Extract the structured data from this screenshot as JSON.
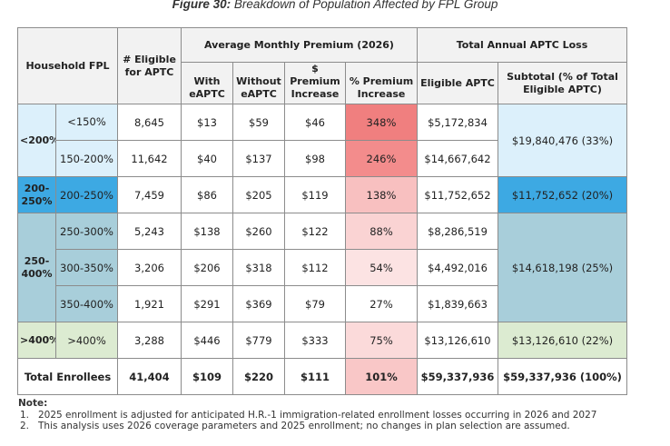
{
  "caption": {
    "figure": "Figure 30:",
    "text": "Breakdown of Population Affected by FPL Group"
  },
  "headers": {
    "household_fpl": "Household FPL",
    "eligible": "# Eligible for APTC",
    "avg_premium_group": "Average Monthly Premium (2026)",
    "with_eaptc": "With eAPTC",
    "without_eaptc": "Without eAPTC",
    "dollar_increase": "$ Premium Increase",
    "pct_increase": "% Premium Increase",
    "aptc_loss_group": "Total Annual APTC Loss",
    "eligible_aptc": "Eligible APTC",
    "subtotal": "Subtotal (% of Total Eligible APTC)"
  },
  "groups": [
    {
      "label": "<200%",
      "color": "#dcf0fb",
      "subtotal": "$19,840,476 (33%)"
    },
    {
      "label": "200-250%",
      "color": "#3da9e3",
      "subtotal": "$11,752,652 (20%)"
    },
    {
      "label": "250-400%",
      "color": "#a8ceda",
      "subtotal": "$14,618,198 (25%)"
    },
    {
      "label": ">400%",
      "color": "#dcebd1",
      "subtotal": "$13,126,610 (22%)"
    }
  ],
  "rows": [
    {
      "fpl": "<150%",
      "eligible": "8,645",
      "with": "$13",
      "without": "$59",
      "inc": "$46",
      "pct": "348%",
      "pct_color": "#f07f7f",
      "aptc": "$5,172,834"
    },
    {
      "fpl": "150-200%",
      "eligible": "11,642",
      "with": "$40",
      "without": "$137",
      "inc": "$98",
      "pct": "246%",
      "pct_color": "#f38c8c",
      "aptc": "$14,667,642"
    },
    {
      "fpl": "200-250%",
      "eligible": "7,459",
      "with": "$86",
      "without": "$205",
      "inc": "$119",
      "pct": "138%",
      "pct_color": "#f8c0c0",
      "aptc": "$11,752,652"
    },
    {
      "fpl": "250-300%",
      "eligible": "5,243",
      "with": "$138",
      "without": "$260",
      "inc": "$122",
      "pct": "88%",
      "pct_color": "#fad3d3",
      "aptc": "$8,286,519"
    },
    {
      "fpl": "300-350%",
      "eligible": "3,206",
      "with": "$206",
      "without": "$318",
      "inc": "$112",
      "pct": "54%",
      "pct_color": "#fce3e3",
      "aptc": "$4,492,016"
    },
    {
      "fpl": "350-400%",
      "eligible": "1,921",
      "with": "$291",
      "without": "$369",
      "inc": "$79",
      "pct": "27%",
      "pct_color": "#ffffff",
      "aptc": "$1,839,663"
    },
    {
      "fpl": ">400%",
      "eligible": "3,288",
      "with": "$446",
      "without": "$779",
      "inc": "$333",
      "pct": "75%",
      "pct_color": "#fbdada",
      "aptc": "$13,126,610"
    }
  ],
  "total": {
    "label": "Total Enrollees",
    "eligible": "41,404",
    "with": "$109",
    "without": "$220",
    "inc": "$111",
    "pct": "101%",
    "pct_color": "#f9c7c7",
    "aptc": "$59,337,936",
    "subtotal": "$59,337,936 (100%)"
  },
  "notes": {
    "title": "Note:",
    "items": [
      {
        "num": "1.",
        "text": "2025 enrollment is adjusted for anticipated H.R.-1 immigration-related enrollment losses occurring in 2026 and 2027"
      },
      {
        "num": "2.",
        "text": "This analysis uses 2026 coverage parameters and 2025 enrollment; no changes in plan selection are assumed."
      }
    ]
  }
}
